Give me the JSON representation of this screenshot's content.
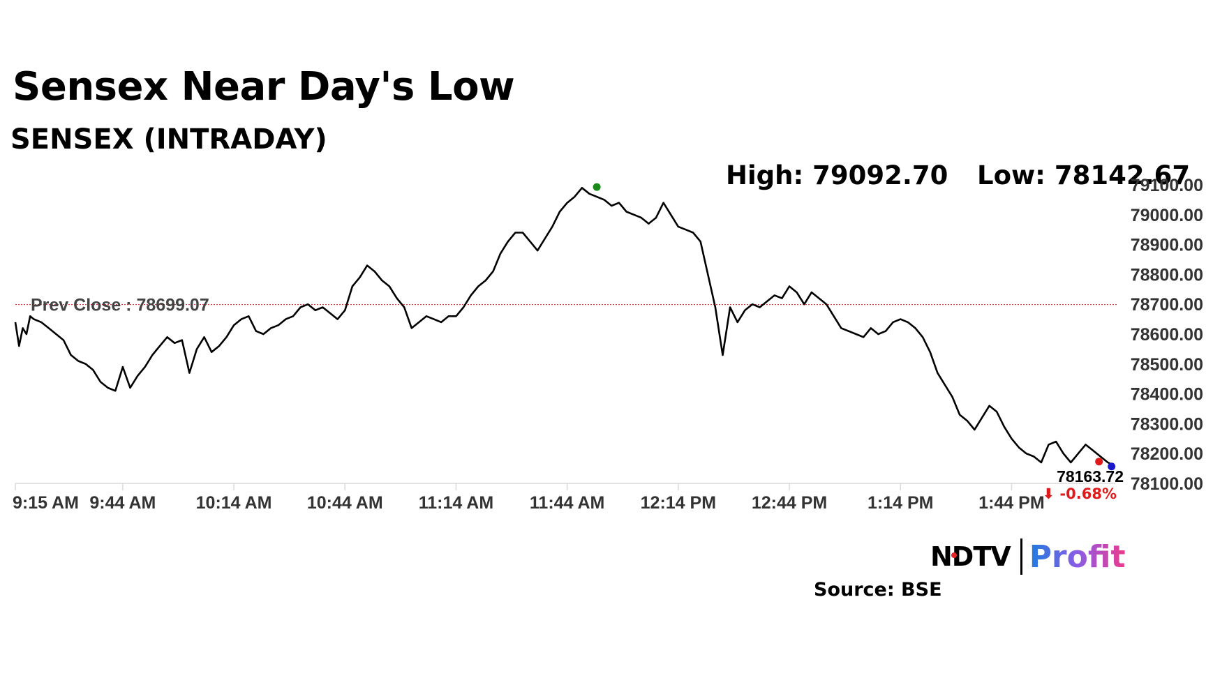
{
  "header": {
    "title": "Sensex Near Day's Low",
    "subtitle": "SENSEX (INTRADAY)"
  },
  "stats": {
    "high": "High: 79092.70",
    "low": "Low: 78142.67"
  },
  "footer": {
    "logo_ndtv": "NDTV",
    "logo_profit": "Profit",
    "source": "Source: BSE"
  },
  "colors": {
    "line": "#000000",
    "prev_close": "#cc2222",
    "high_marker": "#1a8a1a",
    "last_marker": "#e01a1a",
    "current_marker": "#1a1acc",
    "change": "#e01a1a"
  },
  "chart_data": {
    "type": "line",
    "title": "SENSEX (INTRADAY)",
    "xlabel": "",
    "ylabel": "",
    "x_ticks": [
      "9:15 AM",
      "9:44 AM",
      "10:14 AM",
      "10:44 AM",
      "11:14 AM",
      "11:44 AM",
      "12:14 PM",
      "12:44 PM",
      "1:14 PM",
      "1:44 PM"
    ],
    "x_tick_minutes": [
      0,
      29,
      59,
      89,
      119,
      149,
      179,
      209,
      239,
      269
    ],
    "y_ticks": [
      "79100.00",
      "79000.00",
      "78900.00",
      "78800.00",
      "78700.00",
      "78600.00",
      "78500.00",
      "78400.00",
      "78300.00",
      "78200.00",
      "78100.00"
    ],
    "ylim": [
      78100,
      79100
    ],
    "xlim_minutes": [
      0,
      297
    ],
    "grid": false,
    "prev_close": {
      "label": "Prev Close : 78699.07",
      "value": 78699.07
    },
    "high": {
      "value": 79092.7,
      "minutes": 157
    },
    "last": {
      "value": 78163.72,
      "minutes": 296,
      "label": "78163.72",
      "change": "⬇ -0.68%"
    },
    "series": [
      {
        "x": [
          0,
          1,
          2,
          3,
          4,
          5,
          7,
          9,
          11,
          13,
          15,
          17,
          19,
          21,
          23,
          25,
          27,
          29,
          31,
          33,
          35,
          37,
          39,
          41,
          43,
          45,
          47,
          49,
          51,
          53,
          55,
          57,
          59,
          61,
          63,
          65,
          67,
          69,
          71,
          73,
          75,
          77,
          79,
          81,
          83,
          85,
          87,
          89,
          91,
          93,
          95,
          97,
          99,
          101,
          103,
          105,
          107,
          109,
          111,
          113,
          115,
          117,
          119,
          121,
          123,
          125,
          127,
          129,
          131,
          133,
          135,
          137,
          139,
          141,
          143,
          145,
          147,
          149,
          151,
          153,
          155,
          157,
          159,
          161,
          163,
          165,
          167,
          169,
          171,
          173,
          175,
          177,
          179,
          181,
          183,
          185,
          187,
          189,
          191,
          193,
          195,
          197,
          199,
          201,
          203,
          205,
          207,
          209,
          211,
          213,
          215,
          217,
          219,
          221,
          223,
          225,
          227,
          229,
          231,
          233,
          235,
          237,
          239,
          241,
          243,
          245,
          247,
          249,
          251,
          253,
          255,
          257,
          259,
          261,
          263,
          265,
          267,
          269,
          271,
          273,
          275,
          277,
          279,
          281,
          283,
          285,
          287,
          289,
          291,
          293,
          295,
          296
        ],
        "values": [
          78640,
          78560,
          78620,
          78600,
          78660,
          78650,
          78640,
          78620,
          78600,
          78580,
          78530,
          78510,
          78500,
          78480,
          78440,
          78420,
          78410,
          78490,
          78420,
          78460,
          78490,
          78530,
          78560,
          78590,
          78570,
          78580,
          78470,
          78550,
          78590,
          78540,
          78560,
          78590,
          78630,
          78650,
          78660,
          78610,
          78600,
          78620,
          78630,
          78650,
          78660,
          78690,
          78700,
          78680,
          78690,
          78670,
          78650,
          78680,
          78760,
          78790,
          78830,
          78810,
          78780,
          78760,
          78720,
          78690,
          78620,
          78640,
          78660,
          78650,
          78640,
          78660,
          78660,
          78690,
          78730,
          78760,
          78780,
          78810,
          78870,
          78910,
          78940,
          78940,
          78910,
          78880,
          78920,
          78960,
          79010,
          79040,
          79060,
          79090,
          79070,
          79060,
          79050,
          79030,
          79040,
          79010,
          79000,
          78990,
          78970,
          78990,
          79040,
          79000,
          78960,
          78950,
          78940,
          78910,
          78800,
          78690,
          78530,
          78690,
          78640,
          78680,
          78700,
          78690,
          78710,
          78730,
          78720,
          78760,
          78740,
          78700,
          78740,
          78720,
          78700,
          78660,
          78620,
          78610,
          78600,
          78590,
          78620,
          78600,
          78610,
          78640,
          78650,
          78640,
          78620,
          78590,
          78540,
          78470,
          78430,
          78390,
          78330,
          78310,
          78280,
          78320,
          78360,
          78340,
          78290,
          78250,
          78220,
          78200,
          78190,
          78170,
          78230,
          78240,
          78200,
          78170,
          78200,
          78230,
          78210,
          78190,
          78170,
          78164
        ]
      }
    ]
  }
}
